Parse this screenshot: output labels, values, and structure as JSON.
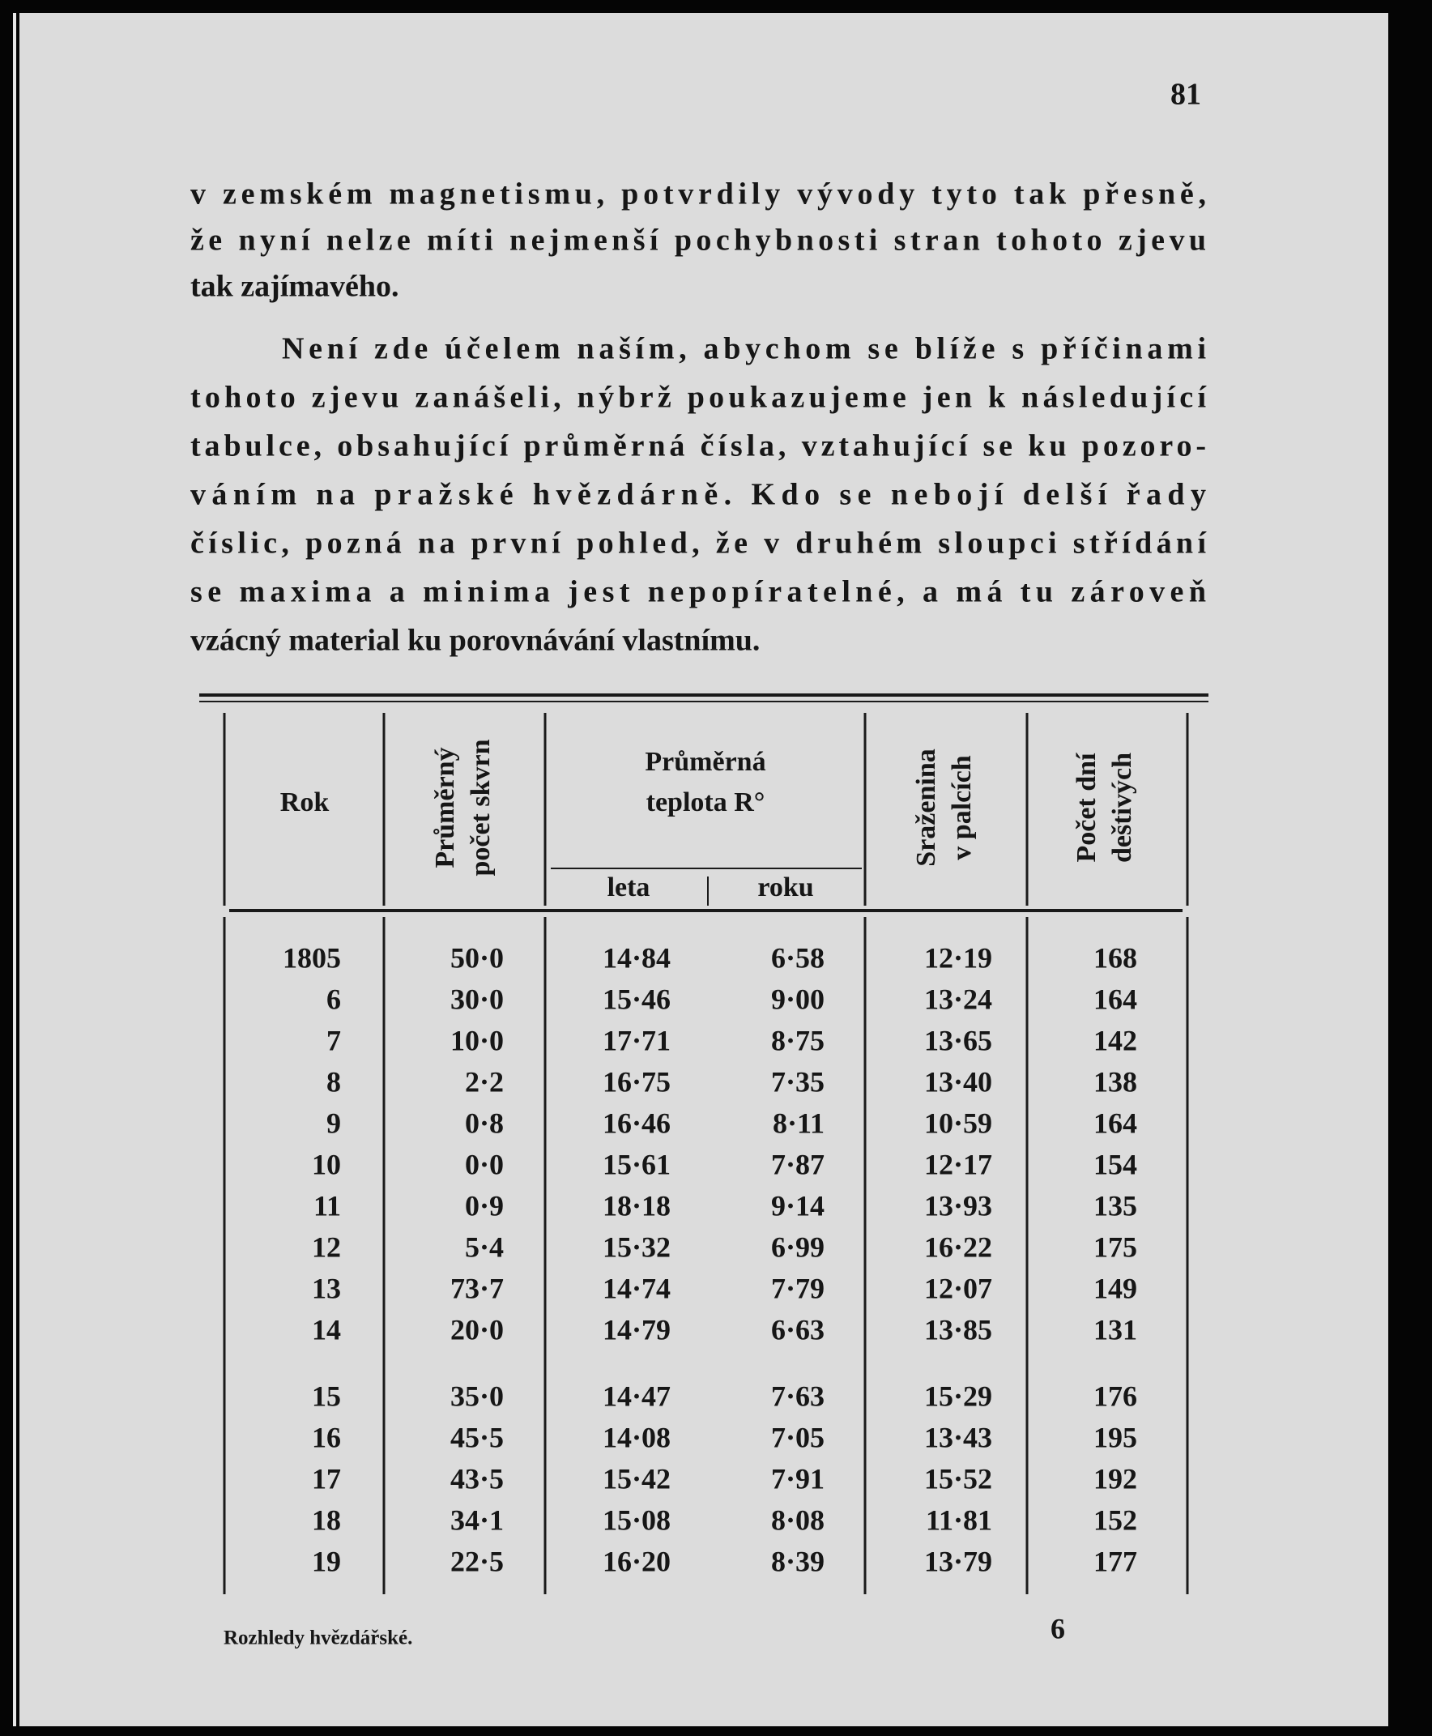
{
  "page_number": "81",
  "paragraphs": [
    {
      "lines": [
        "v zemském magnetismu, potvrdily vývody tyto tak přesně,",
        "že nyní nelze míti nejmenší pochybnosti stran tohoto zjevu",
        "tak zajímavého."
      ]
    },
    {
      "lines": [
        "Není zde účelem naším, abychom se blíže s příčinami",
        "tohoto zjevu zanášeli, nýbrž poukazujeme jen k následující",
        "tabulce, obsahující průměrná čísla, vztahující se ku pozoro-",
        "váním na pražské hvězdárně. Kdo se nebojí delší řady",
        "číslic, pozná na první pohled, že v druhém sloupci střídání",
        "se maxima a minima jest nepopíratelné, a má tu zároveň",
        "vzácný material ku porovnávání vlastnímu."
      ]
    }
  ],
  "table": {
    "headers": {
      "year": "Rok",
      "sunspots": [
        "Průměrný",
        "počet skvrn"
      ],
      "temperature": [
        "Průměrná",
        "teplota R°"
      ],
      "summer": "leta",
      "annual": "roku",
      "precipitation": [
        "Sraženina",
        "v palcích"
      ],
      "rain_days": [
        "Počet dní",
        "deštivých"
      ]
    },
    "rows": [
      [
        "1805",
        "50·0",
        "14·84",
        "6·58",
        "12·19",
        "168"
      ],
      [
        "6",
        "30·0",
        "15·46",
        "9·00",
        "13·24",
        "164"
      ],
      [
        "7",
        "10·0",
        "17·71",
        "8·75",
        "13·65",
        "142"
      ],
      [
        "8",
        "2·2",
        "16·75",
        "7·35",
        "13·40",
        "138"
      ],
      [
        "9",
        "0·8",
        "16·46",
        "8·11",
        "10·59",
        "164"
      ],
      [
        "10",
        "0·0",
        "15·61",
        "7·87",
        "12·17",
        "154"
      ],
      [
        "11",
        "0·9",
        "18·18",
        "9·14",
        "13·93",
        "135"
      ],
      [
        "12",
        "5·4",
        "15·32",
        "6·99",
        "16·22",
        "175"
      ],
      [
        "13",
        "73·7",
        "14·74",
        "7·79",
        "12·07",
        "149"
      ],
      [
        "14",
        "20·0",
        "14·79",
        "6·63",
        "13·85",
        "131"
      ],
      [
        "15",
        "35·0",
        "14·47",
        "7·63",
        "15·29",
        "176"
      ],
      [
        "16",
        "45·5",
        "14·08",
        "7·05",
        "13·43",
        "195"
      ],
      [
        "17",
        "43·5",
        "15·42",
        "7·91",
        "15·52",
        "192"
      ],
      [
        "18",
        "34·1",
        "15·08",
        "8·08",
        "11·81",
        "152"
      ],
      [
        "19",
        "22·5",
        "16·20",
        "8·39",
        "13·79",
        "177"
      ]
    ]
  },
  "footer": {
    "journal": "Rozhledy hvězdářské.",
    "signature": "6"
  }
}
